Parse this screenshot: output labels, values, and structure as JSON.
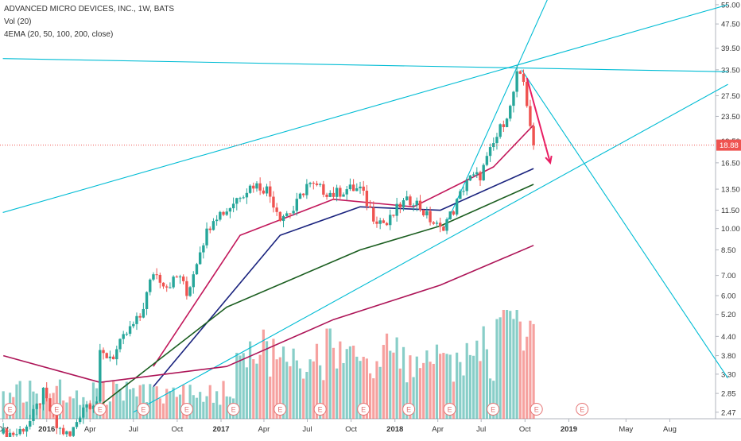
{
  "legend": {
    "symbol_line": "ADVANCED MICRO DEVICES, INC., 1W, BATS",
    "volume_line": "Vol (20)",
    "ema_line": "4EMA (20, 50, 100, 200, close)"
  },
  "chart_data": {
    "type": "candlestick",
    "title": "ADVANCED MICRO DEVICES, INC., 1W, BATS",
    "price_axis_scale": "log",
    "y_tick_labels": [
      "55.00",
      "47.50",
      "39.50",
      "33.50",
      "27.50",
      "23.50",
      "19.50",
      "16.50",
      "13.50",
      "11.50",
      "10.00",
      "8.50",
      "7.00",
      "6.00",
      "5.20",
      "4.40",
      "3.80",
      "3.30",
      "2.85",
      "2.47"
    ],
    "x_tick_labels": [
      "Oct",
      "2016",
      "Apr",
      "Jul",
      "Oct",
      "2017",
      "Apr",
      "Jul",
      "Oct",
      "2018",
      "Apr",
      "Jul",
      "Oct",
      "2019",
      "May",
      "Aug"
    ],
    "last_price": "18.88",
    "last_price_value": 18.88,
    "earnings_marker": "E",
    "colors": {
      "up": "#26a69a",
      "down": "#ef5350",
      "trendline": "#00bcd4",
      "ema20": "#c2185b",
      "ema50": "#1a237e",
      "ema100": "#1b5e20",
      "ema200": "#ad1457",
      "arrow": "#e91e63",
      "price_label": "#ef5350"
    },
    "weeks": [
      {
        "d": "2015-10-02",
        "c": 2.1
      },
      {
        "d": "2015-10-30",
        "c": 2.1
      },
      {
        "d": "2015-11-27",
        "c": 2.3
      },
      {
        "d": "2015-12-25",
        "c": 2.85
      },
      {
        "d": "2016-01-22",
        "c": 2.2
      },
      {
        "d": "2016-02-19",
        "c": 2.05
      },
      {
        "d": "2016-03-18",
        "c": 2.6
      },
      {
        "d": "2016-04-15",
        "c": 2.7
      },
      {
        "d": "2016-04-22",
        "c": 3.8
      },
      {
        "d": "2016-05-20",
        "c": 3.8
      },
      {
        "d": "2016-06-17",
        "c": 4.5
      },
      {
        "d": "2016-07-15",
        "c": 5.1
      },
      {
        "d": "2016-08-12",
        "c": 7.2
      },
      {
        "d": "2016-09-09",
        "c": 6.5
      },
      {
        "d": "2016-10-07",
        "c": 7.0
      },
      {
        "d": "2016-10-21",
        "c": 6.0
      },
      {
        "d": "2016-11-18",
        "c": 8.6
      },
      {
        "d": "2016-12-16",
        "c": 11.0
      },
      {
        "d": "2017-01-13",
        "c": 11.5
      },
      {
        "d": "2017-02-10",
        "c": 13.0
      },
      {
        "d": "2017-03-10",
        "c": 14.0
      },
      {
        "d": "2017-04-07",
        "c": 13.5
      },
      {
        "d": "2017-05-05",
        "c": 11.0
      },
      {
        "d": "2017-06-02",
        "c": 11.5
      },
      {
        "d": "2017-06-30",
        "c": 14.0
      },
      {
        "d": "2017-07-28",
        "c": 13.5
      },
      {
        "d": "2017-08-25",
        "c": 13.0
      },
      {
        "d": "2017-09-22",
        "c": 13.5
      },
      {
        "d": "2017-10-20",
        "c": 13.5
      },
      {
        "d": "2017-11-17",
        "c": 11.0
      },
      {
        "d": "2017-12-15",
        "c": 10.3
      },
      {
        "d": "2018-01-12",
        "c": 12.0
      },
      {
        "d": "2018-02-09",
        "c": 12.5
      },
      {
        "d": "2018-03-09",
        "c": 11.0
      },
      {
        "d": "2018-04-06",
        "c": 9.9
      },
      {
        "d": "2018-05-04",
        "c": 11.5
      },
      {
        "d": "2018-06-01",
        "c": 14.5
      },
      {
        "d": "2018-06-29",
        "c": 15.0
      },
      {
        "d": "2018-07-27",
        "c": 19.0
      },
      {
        "d": "2018-08-24",
        "c": 24.0
      },
      {
        "d": "2018-08-31",
        "c": 25.0
      },
      {
        "d": "2018-09-14",
        "c": 32.0
      },
      {
        "d": "2018-09-28",
        "c": 30.5
      },
      {
        "d": "2018-10-05",
        "c": 26.0
      },
      {
        "d": "2018-10-19",
        "c": 18.88
      }
    ],
    "ema": [
      {
        "name": "EMA 20",
        "values": [
          {
            "d": "2016-08-12",
            "v": 3.5
          },
          {
            "d": "2017-02-10",
            "v": 9.5
          },
          {
            "d": "2017-08-25",
            "v": 12.5
          },
          {
            "d": "2018-02-09",
            "v": 11.8
          },
          {
            "d": "2018-07-27",
            "v": 16.0
          },
          {
            "d": "2018-10-19",
            "v": 22.0
          }
        ]
      },
      {
        "name": "EMA 50",
        "values": [
          {
            "d": "2016-08-12",
            "v": 3.0
          },
          {
            "d": "2017-05-05",
            "v": 9.5
          },
          {
            "d": "2017-10-20",
            "v": 11.8
          },
          {
            "d": "2018-04-06",
            "v": 11.5
          },
          {
            "d": "2018-10-19",
            "v": 15.8
          }
        ]
      },
      {
        "name": "EMA 100",
        "values": [
          {
            "d": "2016-04-22",
            "v": 2.6
          },
          {
            "d": "2017-01-13",
            "v": 5.5
          },
          {
            "d": "2017-10-20",
            "v": 8.5
          },
          {
            "d": "2018-04-06",
            "v": 10.2
          },
          {
            "d": "2018-10-19",
            "v": 14.0
          }
        ]
      },
      {
        "name": "EMA 200",
        "values": [
          {
            "d": "2015-10-02",
            "v": 3.8
          },
          {
            "d": "2016-04-22",
            "v": 3.1
          },
          {
            "d": "2017-01-13",
            "v": 3.5
          },
          {
            "d": "2017-08-25",
            "v": 5.0
          },
          {
            "d": "2018-04-06",
            "v": 6.5
          },
          {
            "d": "2018-10-19",
            "v": 8.8
          }
        ]
      }
    ],
    "earnings_dates": [
      "2015-10-16",
      "2016-01-22",
      "2016-04-22",
      "2016-07-22",
      "2016-10-21",
      "2017-01-27",
      "2017-05-05",
      "2017-07-28",
      "2017-10-27",
      "2018-01-30",
      "2018-04-26",
      "2018-07-26",
      "2018-10-25",
      "2019-01-29"
    ],
    "trendlines": [
      {
        "from": {
          "d": "2015-10-01",
          "v": 36.5
        },
        "to": {
          "d": "2019-12-01",
          "v": 33.0
        }
      },
      {
        "from": {
          "d": "2015-10-01",
          "v": 11.3
        },
        "to": {
          "d": "2019-12-01",
          "v": 55.0
        }
      },
      {
        "from": {
          "d": "2016-07-01",
          "v": 2.47
        },
        "to": {
          "d": "2019-12-01",
          "v": 30.0
        }
      },
      {
        "from": {
          "d": "2018-04-13",
          "v": 9.9
        },
        "to": {
          "d": "2018-11-23",
          "v": 60.0
        }
      },
      {
        "from": {
          "d": "2018-09-24",
          "v": 33.5
        },
        "to": {
          "d": "2019-12-01",
          "v": 3.2
        }
      }
    ],
    "projection_arrow": {
      "from": {
        "d": "2018-10-05",
        "v": 31.5
      },
      "to": {
        "d": "2018-11-23",
        "v": 16.5
      }
    }
  }
}
